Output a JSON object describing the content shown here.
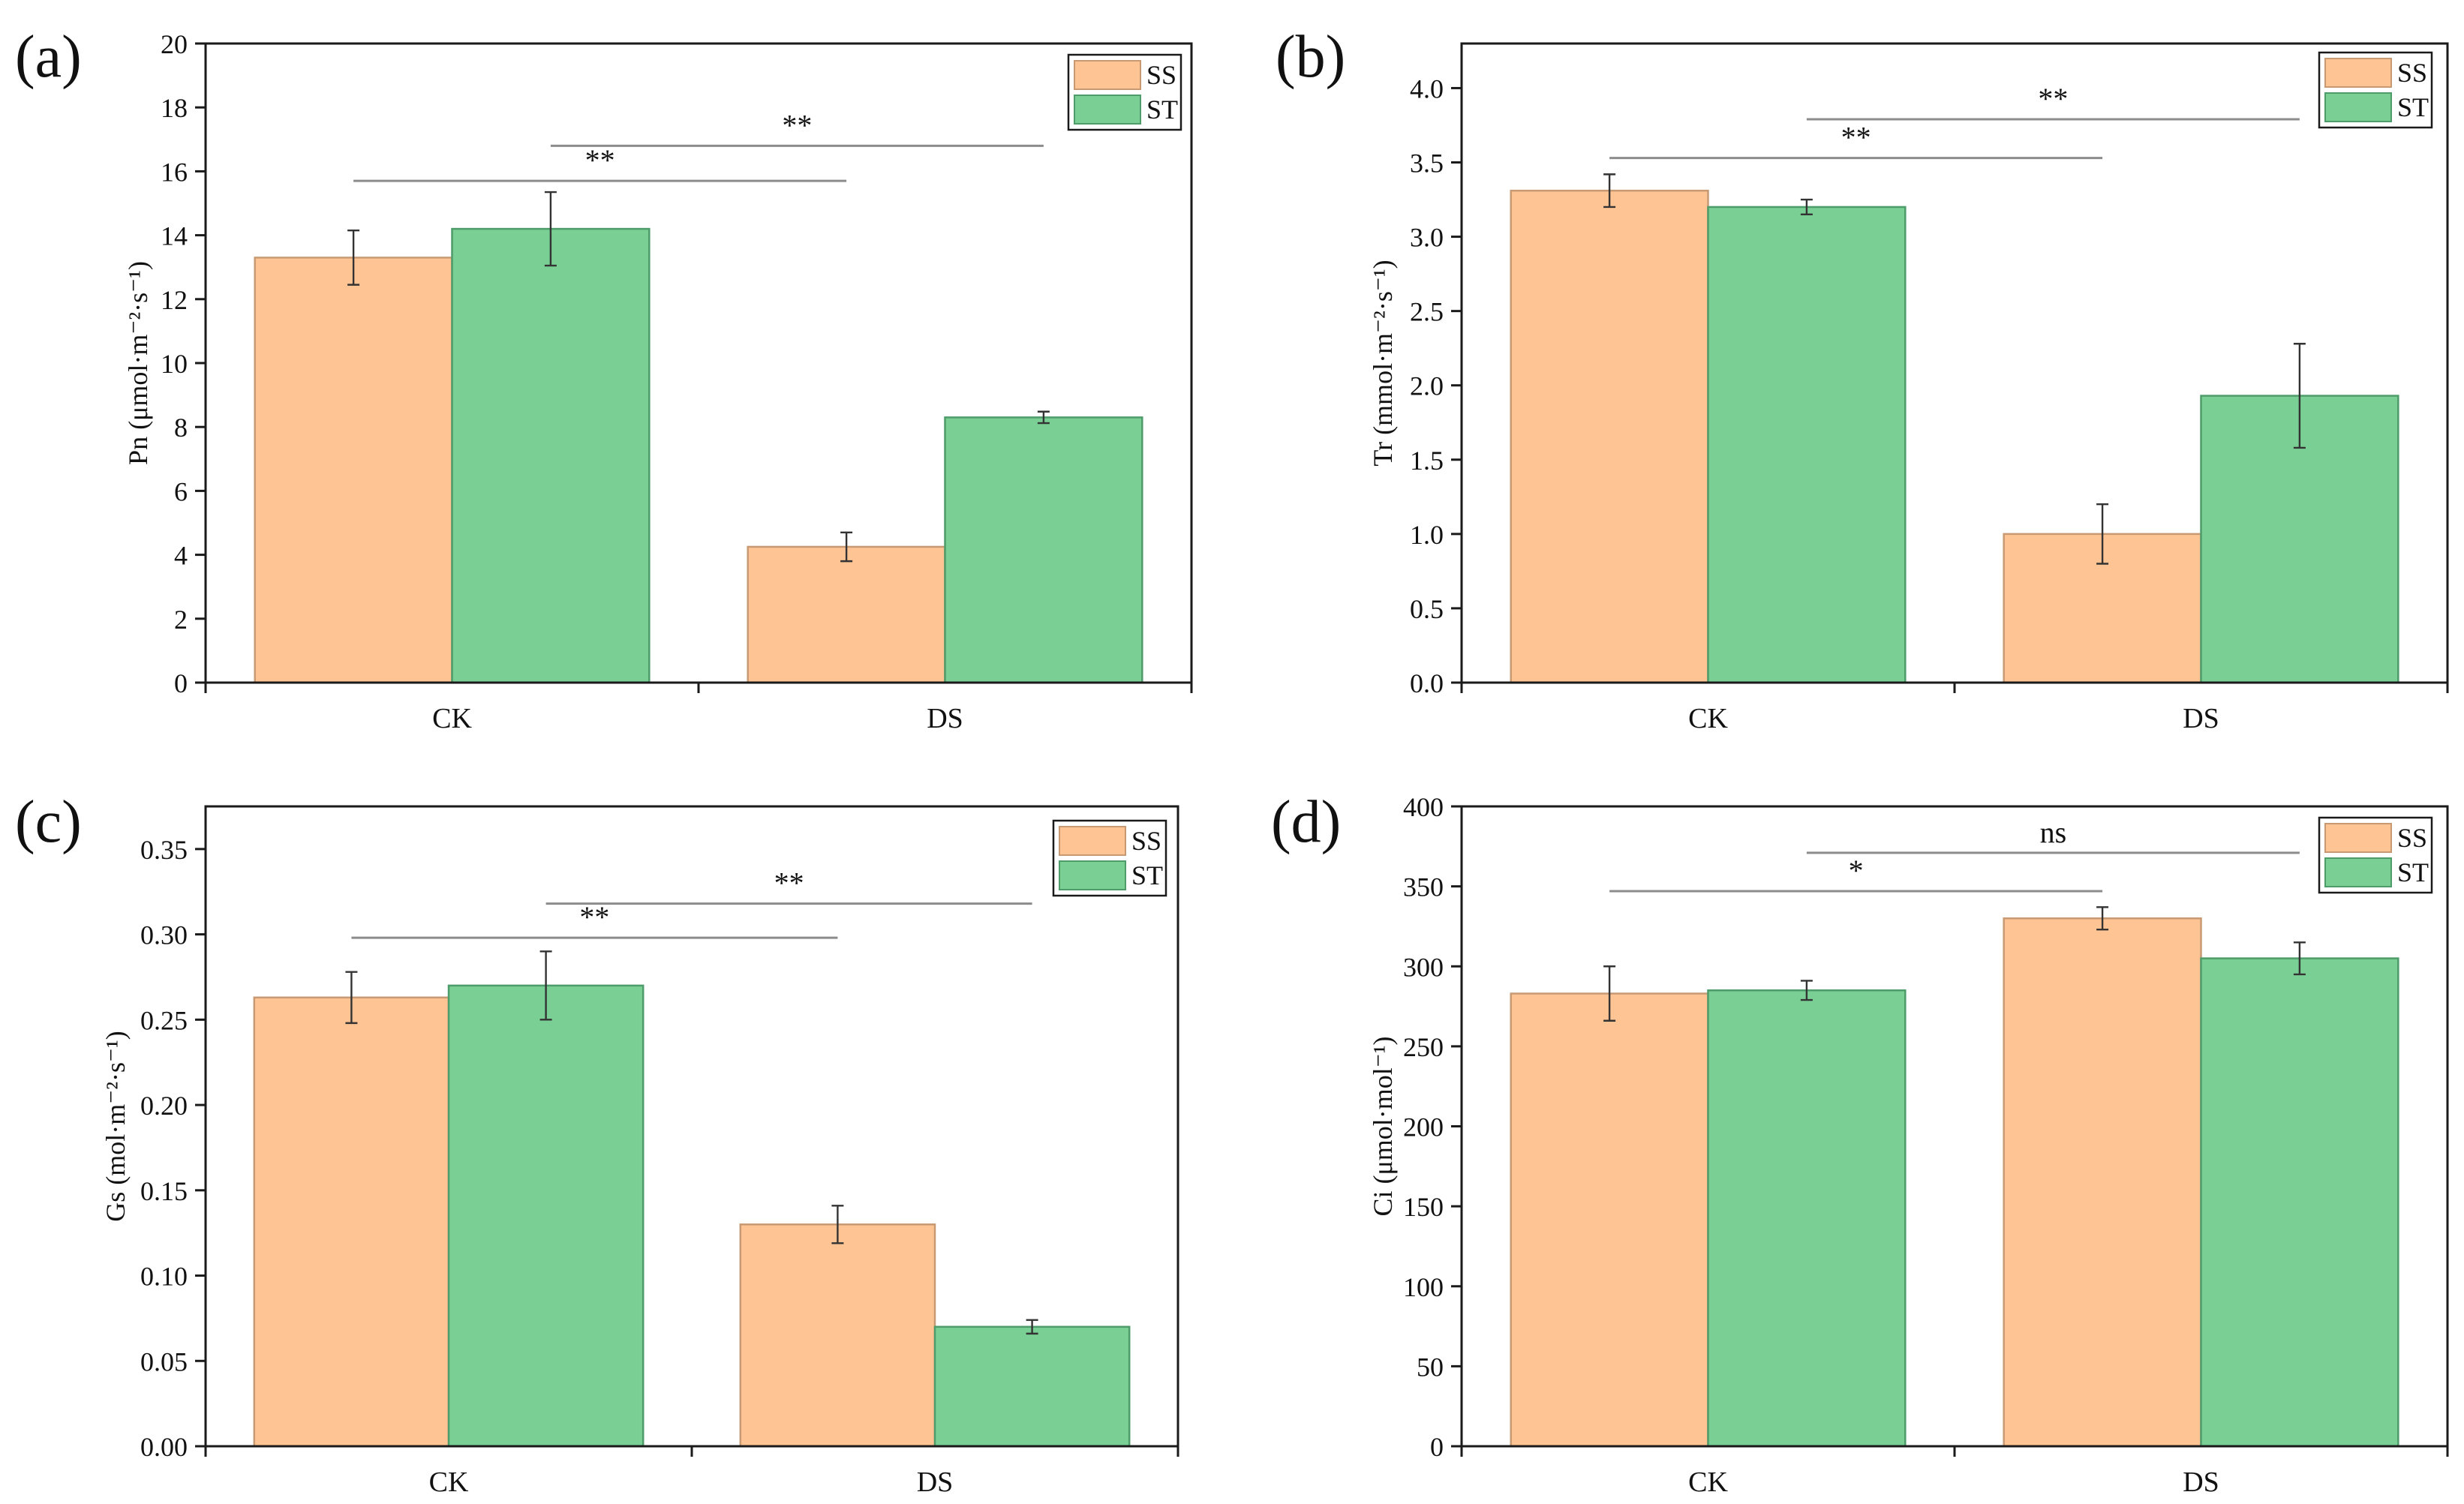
{
  "colors": {
    "SS": "#FFC494",
    "ST": "#7ACF95",
    "SS_edge": "#C79A74",
    "ST_edge": "#4E9C6A"
  },
  "chart_data": [
    {
      "type": "bar",
      "panel_label": "(a)",
      "ylabel": "Pn (μmol·m⁻²·s⁻¹)",
      "categories": [
        "CK",
        "DS"
      ],
      "ylim": [
        0,
        20
      ],
      "yticks": [
        "0",
        "2",
        "4",
        "6",
        "8",
        "10",
        "12",
        "14",
        "16",
        "18",
        "20"
      ],
      "series": [
        {
          "name": "SS",
          "values": [
            13.3,
            4.25
          ],
          "errors": [
            0.85,
            0.45
          ]
        },
        {
          "name": "ST",
          "values": [
            14.2,
            8.3
          ],
          "errors": [
            1.15,
            0.18
          ]
        }
      ],
      "significance": [
        {
          "series": "SS",
          "label": "**",
          "level": 15.7
        },
        {
          "series": "ST",
          "label": "**",
          "level": 16.8
        }
      ],
      "legend": [
        "SS",
        "ST"
      ],
      "legend_position": "top-right"
    },
    {
      "type": "bar",
      "panel_label": "(b)",
      "ylabel": "Tr (mmol·m⁻²·s⁻¹)",
      "categories": [
        "CK",
        "DS"
      ],
      "ylim": [
        0,
        4.3
      ],
      "yticks": [
        "0.0",
        "0.5",
        "1.0",
        "1.5",
        "2.0",
        "2.5",
        "3.0",
        "3.5",
        "4.0"
      ],
      "series": [
        {
          "name": "SS",
          "values": [
            3.31,
            1.0
          ],
          "errors": [
            0.11,
            0.2
          ]
        },
        {
          "name": "ST",
          "values": [
            3.2,
            1.93
          ],
          "errors": [
            0.05,
            0.35
          ]
        }
      ],
      "significance": [
        {
          "series": "SS",
          "label": "**",
          "level": 3.53
        },
        {
          "series": "ST",
          "label": "**",
          "level": 3.79
        }
      ],
      "legend": [
        "SS",
        "ST"
      ],
      "legend_position": "top-right"
    },
    {
      "type": "bar",
      "panel_label": "(c)",
      "ylabel": "Gs (mol·m⁻²·s⁻¹)",
      "categories": [
        "CK",
        "DS"
      ],
      "ylim": [
        0,
        0.375
      ],
      "yticks": [
        "0.00",
        "0.05",
        "0.10",
        "0.15",
        "0.20",
        "0.25",
        "0.30",
        "0.35"
      ],
      "series": [
        {
          "name": "SS",
          "values": [
            0.263,
            0.13
          ],
          "errors": [
            0.015,
            0.011
          ]
        },
        {
          "name": "ST",
          "values": [
            0.27,
            0.07
          ],
          "errors": [
            0.02,
            0.004
          ]
        }
      ],
      "significance": [
        {
          "series": "SS",
          "label": "**",
          "level": 0.298
        },
        {
          "series": "ST",
          "label": "**",
          "level": 0.318
        }
      ],
      "legend": [
        "SS",
        "ST"
      ],
      "legend_position": "top-right"
    },
    {
      "type": "bar",
      "panel_label": "(d)",
      "ylabel": "Ci (μmol·mol⁻¹)",
      "categories": [
        "CK",
        "DS"
      ],
      "ylim": [
        0,
        400
      ],
      "yticks": [
        "0",
        "50",
        "100",
        "150",
        "200",
        "250",
        "300",
        "350",
        "400"
      ],
      "series": [
        {
          "name": "SS",
          "values": [
            283,
            330
          ],
          "errors": [
            17,
            7
          ]
        },
        {
          "name": "ST",
          "values": [
            285,
            305
          ],
          "errors": [
            6,
            10
          ]
        }
      ],
      "significance": [
        {
          "series": "SS",
          "label": "*",
          "level": 347
        },
        {
          "series": "ST",
          "label": "ns",
          "level": 371
        }
      ],
      "legend": [
        "SS",
        "ST"
      ],
      "legend_position": "top-right"
    }
  ]
}
